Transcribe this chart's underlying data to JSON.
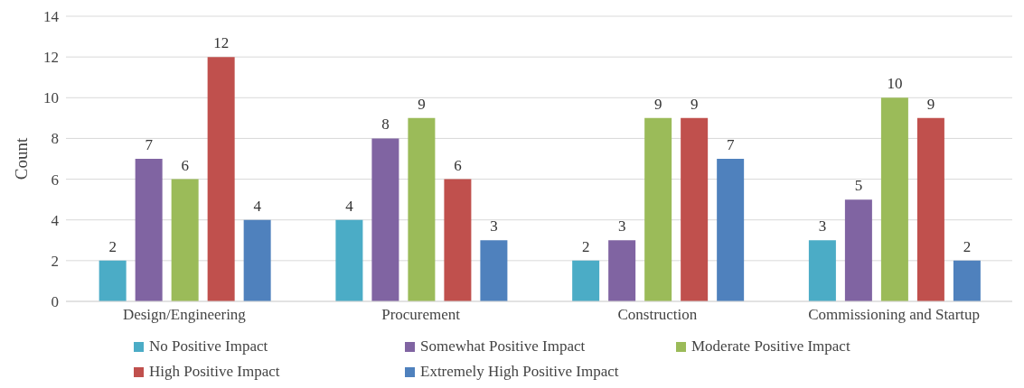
{
  "chart_data": {
    "type": "bar",
    "ylabel": "Count",
    "categories": [
      "Design/Engineering",
      "Procurement",
      "Construction",
      "Commissioning and Startup"
    ],
    "series": [
      {
        "name": "No Positive Impact",
        "color": "#4bacc6",
        "values": [
          2,
          4,
          2,
          3
        ]
      },
      {
        "name": "Somewhat Positive Impact",
        "color": "#8064a2",
        "values": [
          7,
          8,
          3,
          5
        ]
      },
      {
        "name": "Moderate Positive Impact",
        "color": "#9bbb59",
        "values": [
          6,
          9,
          9,
          10
        ]
      },
      {
        "name": "High Positive Impact",
        "color": "#c0504d",
        "values": [
          12,
          6,
          9,
          9
        ]
      },
      {
        "name": "Extremely High Positive Impact",
        "color": "#4f81bd",
        "values": [
          4,
          3,
          7,
          2
        ]
      }
    ],
    "ylim": [
      0,
      14
    ],
    "yticks": [
      0,
      2,
      4,
      6,
      8,
      10,
      12,
      14
    ],
    "grid": "y",
    "legend": "bottom",
    "data_labels": true
  }
}
